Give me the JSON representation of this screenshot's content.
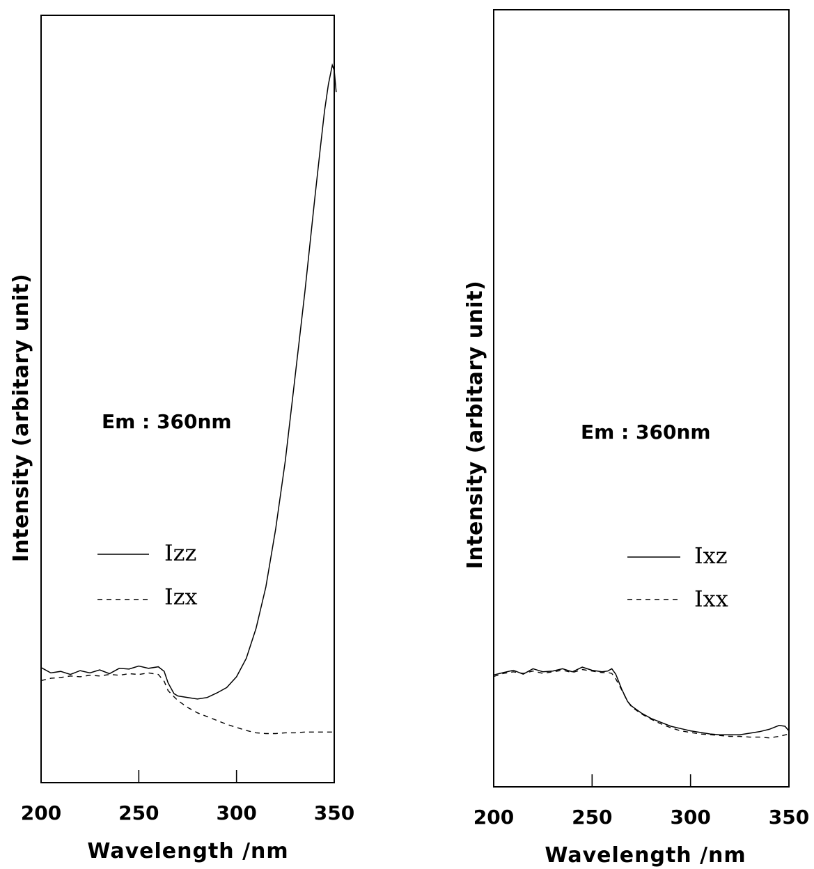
{
  "chart_data": [
    {
      "type": "line",
      "xlabel": "Wavelength /nm",
      "ylabel": "Intensity (arbitary unit)",
      "xlim": [
        200,
        350
      ],
      "ylim": [
        0,
        100
      ],
      "xticks": [
        "200",
        "250",
        "300",
        "350"
      ],
      "annotation": "Em : 360nm",
      "grid": false,
      "legend_position": "center-left",
      "series": [
        {
          "name": "Izz",
          "style": "solid",
          "x": [
            200,
            205,
            210,
            215,
            220,
            225,
            230,
            235,
            240,
            245,
            250,
            255,
            260,
            263,
            265,
            268,
            270,
            275,
            280,
            285,
            290,
            295,
            300,
            305,
            310,
            315,
            320,
            325,
            330,
            335,
            340,
            343,
            345,
            347,
            349,
            350,
            351
          ],
          "y": [
            15,
            14.3,
            14.5,
            14.1,
            14.6,
            14.3,
            14.7,
            14.2,
            14.9,
            14.8,
            15.2,
            14.9,
            15.1,
            14.5,
            13.0,
            11.6,
            11.3,
            11.1,
            10.9,
            11.1,
            11.7,
            12.4,
            13.8,
            16.2,
            20.1,
            25.5,
            33.0,
            42.0,
            53.0,
            64.0,
            76.0,
            83.0,
            87.5,
            91.0,
            93.5,
            92.8,
            90.0
          ]
        },
        {
          "name": "Izx",
          "style": "dashed",
          "x": [
            200,
            205,
            210,
            215,
            220,
            225,
            230,
            235,
            240,
            245,
            250,
            255,
            260,
            263,
            265,
            268,
            270,
            275,
            280,
            285,
            290,
            295,
            300,
            305,
            310,
            315,
            320,
            325,
            330,
            335,
            340,
            345,
            350
          ],
          "y": [
            13.3,
            13.6,
            13.7,
            13.9,
            13.8,
            14.0,
            13.9,
            14.1,
            14.0,
            14.2,
            14.1,
            14.3,
            14.1,
            13.2,
            12.0,
            11.2,
            10.7,
            9.8,
            9.1,
            8.6,
            8.1,
            7.6,
            7.2,
            6.8,
            6.5,
            6.4,
            6.4,
            6.5,
            6.5,
            6.6,
            6.6,
            6.6,
            6.6
          ]
        }
      ]
    },
    {
      "type": "line",
      "xlabel": "Wavelength /nm",
      "ylabel": "Intensity (arbitary unit)",
      "xlim": [
        200,
        350
      ],
      "ylim": [
        0,
        100
      ],
      "xticks": [
        "200",
        "250",
        "300",
        "350"
      ],
      "annotation": "Em : 360nm",
      "grid": false,
      "legend_position": "center-right",
      "series": [
        {
          "name": "Ixz",
          "style": "solid",
          "x": [
            200,
            205,
            210,
            215,
            220,
            225,
            230,
            235,
            240,
            245,
            250,
            255,
            258,
            260,
            262,
            265,
            268,
            270,
            275,
            280,
            285,
            290,
            295,
            300,
            305,
            310,
            315,
            320,
            325,
            330,
            335,
            340,
            345,
            348,
            350
          ],
          "y": [
            14.4,
            14.7,
            15.0,
            14.5,
            15.2,
            14.8,
            14.9,
            15.2,
            14.8,
            15.4,
            15.0,
            14.8,
            14.9,
            15.2,
            14.5,
            12.6,
            11.0,
            10.4,
            9.5,
            8.8,
            8.3,
            7.8,
            7.5,
            7.2,
            7.0,
            6.8,
            6.7,
            6.7,
            6.7,
            6.9,
            7.1,
            7.4,
            7.9,
            7.8,
            7.2
          ]
        },
        {
          "name": "Ixx",
          "style": "dashed",
          "x": [
            200,
            205,
            210,
            215,
            220,
            225,
            230,
            235,
            240,
            245,
            250,
            255,
            258,
            260,
            262,
            265,
            268,
            270,
            275,
            280,
            285,
            290,
            295,
            300,
            305,
            310,
            315,
            320,
            325,
            330,
            335,
            340,
            345,
            350
          ],
          "y": [
            14.2,
            14.6,
            14.8,
            14.6,
            14.9,
            14.6,
            14.8,
            15.0,
            14.7,
            15.1,
            14.9,
            14.7,
            14.7,
            14.6,
            13.9,
            12.5,
            11.0,
            10.3,
            9.4,
            8.7,
            8.1,
            7.6,
            7.2,
            7.0,
            6.8,
            6.7,
            6.6,
            6.5,
            6.5,
            6.4,
            6.4,
            6.3,
            6.5,
            6.8
          ]
        }
      ]
    }
  ]
}
